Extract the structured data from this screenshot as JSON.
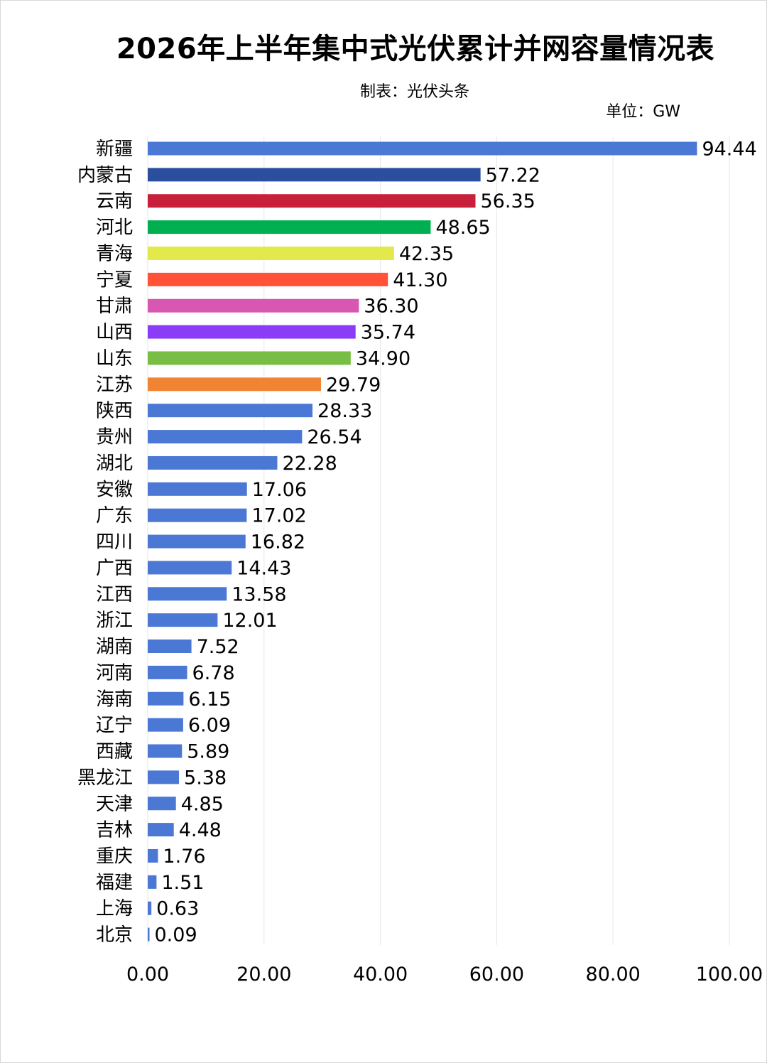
{
  "chart_data": {
    "type": "bar",
    "orientation": "horizontal",
    "title": "2026年上半年集中式光伏累计并网容量情况表",
    "subtitle": "制表：光伏头条",
    "unit_label": "单位：GW",
    "xlim": [
      0,
      100
    ],
    "xticks": [
      "0.00",
      "20.00",
      "40.00",
      "60.00",
      "80.00",
      "100.00"
    ],
    "grid": true,
    "legend": "none",
    "categories": [
      "新疆",
      "内蒙古",
      "云南",
      "河北",
      "青海",
      "宁夏",
      "甘肃",
      "山西",
      "山东",
      "江苏",
      "陕西",
      "贵州",
      "湖北",
      "安徽",
      "广东",
      "四川",
      "广西",
      "江西",
      "浙江",
      "湖南",
      "河南",
      "海南",
      "辽宁",
      "西藏",
      "黑龙江",
      "天津",
      "吉林",
      "重庆",
      "福建",
      "上海",
      "北京"
    ],
    "values": [
      94.44,
      57.22,
      56.35,
      48.65,
      42.35,
      41.3,
      36.3,
      35.74,
      34.9,
      29.79,
      28.33,
      26.54,
      22.28,
      17.06,
      17.02,
      16.82,
      14.43,
      13.58,
      12.01,
      7.52,
      6.78,
      6.15,
      6.09,
      5.89,
      5.38,
      4.85,
      4.48,
      1.76,
      1.51,
      0.63,
      0.09
    ],
    "value_labels": [
      "94.44",
      "57.22",
      "56.35",
      "48.65",
      "42.35",
      "41.30",
      "36.30",
      "35.74",
      "34.90",
      "29.79",
      "28.33",
      "26.54",
      "22.28",
      "17.06",
      "17.02",
      "16.82",
      "14.43",
      "13.58",
      "12.01",
      "7.52",
      "6.78",
      "6.15",
      "6.09",
      "5.89",
      "5.38",
      "4.85",
      "4.48",
      "1.76",
      "1.51",
      "0.63",
      "0.09"
    ],
    "colors": [
      "#4A78D4",
      "#2C4E9E",
      "#C8203A",
      "#00B050",
      "#E3E84B",
      "#FF5236",
      "#D857B0",
      "#8A3CF7",
      "#78BD44",
      "#F08433",
      "#4A78D4",
      "#4A78D4",
      "#4A78D4",
      "#4A78D4",
      "#4A78D4",
      "#4A78D4",
      "#4A78D4",
      "#4A78D4",
      "#4A78D4",
      "#4A78D4",
      "#4A78D4",
      "#4A78D4",
      "#4A78D4",
      "#4A78D4",
      "#4A78D4",
      "#4A78D4",
      "#4A78D4",
      "#4A78D4",
      "#4A78D4",
      "#4A78D4",
      "#4A78D4"
    ]
  }
}
